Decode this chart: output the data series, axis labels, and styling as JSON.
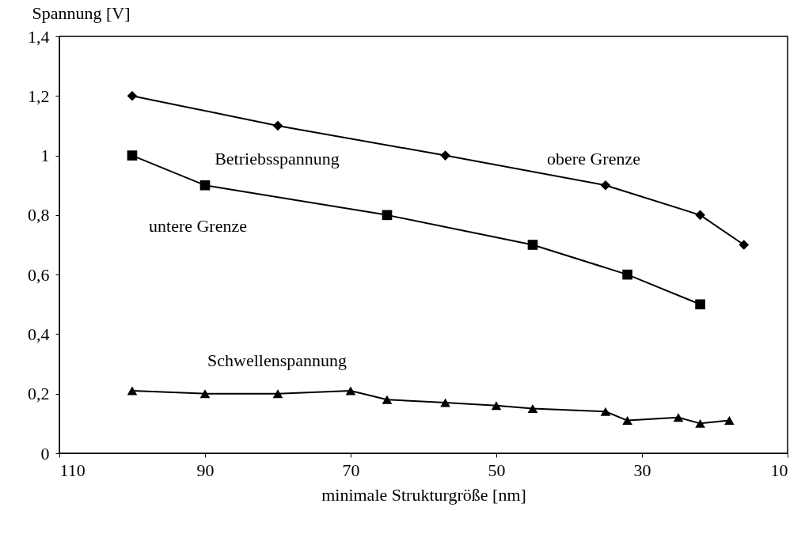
{
  "chart_data": {
    "type": "line",
    "xlabel": "minimale Strukturgröße [nm]",
    "ylabel": "Spannung [V]",
    "xlim": [
      110,
      10
    ],
    "xticks": [
      110,
      90,
      70,
      50,
      30,
      10
    ],
    "ylim": [
      0,
      1.4
    ],
    "yticks": [
      0,
      {
        "value": 0.2,
        "label": "0,2"
      },
      {
        "value": 0.4,
        "label": "0,4"
      },
      {
        "value": 0.6,
        "label": "0,6"
      },
      {
        "value": 0.8,
        "label": "0,8"
      },
      1,
      {
        "value": 1.2,
        "label": "1,2"
      },
      {
        "value": 1.4,
        "label": "1,4"
      }
    ],
    "grid": false,
    "series": [
      {
        "color": "#000000",
        "marker": "diamond",
        "x": [
          100,
          80,
          57,
          35,
          22,
          16
        ],
        "values": [
          1.2,
          1.1,
          1.0,
          0.9,
          0.8,
          0.7
        ]
      },
      {
        "color": "#000000",
        "marker": "square",
        "x": [
          100,
          90,
          65,
          45,
          32,
          22
        ],
        "values": [
          1.0,
          0.9,
          0.8,
          0.7,
          0.6,
          0.5
        ]
      },
      {
        "color": "#000000",
        "marker": "triangle",
        "x": [
          100,
          90,
          80,
          70,
          65,
          57,
          50,
          45,
          35,
          32,
          25,
          22,
          18
        ],
        "values": [
          0.21,
          0.2,
          0.2,
          0.21,
          0.18,
          0.17,
          0.16,
          0.15,
          0.14,
          0.11,
          0.12,
          0.1,
          0.11
        ]
      }
    ],
    "annotations": [
      "Betriebsspannung",
      "obere Grenze",
      "untere Grenze",
      "Schwellenspannung"
    ]
  }
}
